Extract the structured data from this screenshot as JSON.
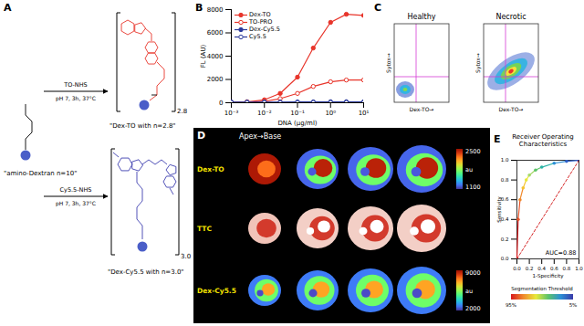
{
  "panel_labels": [
    "A",
    "B",
    "C",
    "D",
    "E"
  ],
  "scheme": {
    "start": "\"amino-Dextran n=10\"",
    "reactions": [
      {
        "reagent": "TO-NHS",
        "conditions": "pH 7, 3h, 37°C",
        "product": "\"Dex-TO with n=2.8\"",
        "subscript": "2.8",
        "color": "#e8352b"
      },
      {
        "reagent": "Cy5.5-NHS",
        "conditions": "pH 7, 3h, 37°C",
        "product": "\"Dex-Cy5.5 with n=3.0\"",
        "subscript": "3.0",
        "color": "#3e3fb0"
      }
    ]
  },
  "flow_cytometry": {
    "plots": [
      "Healthy",
      "Necrotic"
    ],
    "xlabel": "Dex-TO→",
    "ylabel": "Sytox→"
  },
  "imaging": {
    "header": "Apex→Base",
    "rows": [
      {
        "label": "Dex-TO",
        "colorbar": {
          "label": "au",
          "range": [
            1100,
            2500
          ],
          "ticks": [
            1100,
            2500
          ]
        }
      },
      {
        "label": "TTC"
      },
      {
        "label": "Dex-Cy5.5",
        "colorbar": {
          "label": "au",
          "range": [
            2000,
            9000
          ],
          "ticks": [
            2000,
            9000
          ]
        }
      }
    ]
  },
  "chart_data": [
    {
      "type": "line",
      "xlabel": "DNA (µg/ml)",
      "ylabel": "FL (AU)",
      "log": "x",
      "legend": "top-left",
      "x": [
        0.001,
        0.003,
        0.01,
        0.03,
        0.1,
        0.3,
        1,
        3,
        10
      ],
      "series": [
        {
          "name": "Dex-TO",
          "color": "#e8352b",
          "marker": "circle",
          "values": [
            30,
            80,
            250,
            800,
            2200,
            4700,
            6900,
            7600,
            7500
          ]
        },
        {
          "name": "TO-PRO",
          "color": "#e8352b",
          "marker": "circle-open",
          "values": [
            20,
            40,
            120,
            350,
            800,
            1400,
            1800,
            1950,
            1950
          ]
        },
        {
          "name": "Dex-Cy5.5",
          "color": "#2b3a9c",
          "marker": "circle",
          "values": [
            60,
            60,
            60,
            60,
            70,
            70,
            80,
            80,
            80
          ]
        },
        {
          "name": "Cy5.5",
          "color": "#2b3a9c",
          "marker": "circle-open",
          "values": [
            20,
            20,
            20,
            20,
            20,
            25,
            25,
            25,
            25
          ]
        }
      ],
      "xlim": [
        0.001,
        10
      ],
      "xticks": [
        {
          "value": 0.001,
          "label": "10⁻³"
        },
        {
          "value": 0.01,
          "label": "10⁻²"
        },
        {
          "value": 0.1,
          "label": "10⁻¹"
        },
        {
          "value": 1,
          "label": "10⁰"
        },
        {
          "value": 10,
          "label": "10¹"
        }
      ],
      "ylim": [
        0,
        8000
      ],
      "yticks": [
        0,
        2000,
        4000,
        6000,
        8000
      ]
    },
    {
      "type": "line",
      "title": "Receiver Operating Characteristics",
      "xlabel": "1-Specificity",
      "ylabel": "Sensitivity",
      "series": [
        {
          "x": [
            0,
            0.02,
            0.05,
            0.1,
            0.15,
            0.2,
            0.3,
            0.4,
            0.6,
            0.8,
            1
          ],
          "values": [
            0,
            0.4,
            0.6,
            0.72,
            0.8,
            0.85,
            0.9,
            0.93,
            0.97,
            0.99,
            1
          ],
          "colors": [
            "#d7191c",
            "#e8552b",
            "#f08a2c",
            "#f5c230",
            "#e8e83a",
            "#a6d96a",
            "#5cc36a",
            "#2bb3a6",
            "#2b8fd6",
            "#3060c8",
            "#3a3aa8"
          ],
          "marker": "circle"
        },
        {
          "x": [
            0,
            1
          ],
          "values": [
            0,
            1
          ],
          "color": "#d62728",
          "line_style": "dashed"
        }
      ],
      "xlim": [
        0,
        1
      ],
      "xticks": [
        {
          "value": 0,
          "label": "0.0"
        },
        0.2,
        0.4,
        0.6,
        0.8,
        {
          "value": 1,
          "label": "1.0"
        }
      ],
      "ylim": [
        0,
        1
      ],
      "yticks": [
        {
          "value": 0,
          "label": "0.0"
        },
        0.2,
        0.4,
        0.6,
        0.8,
        {
          "value": 1,
          "label": "1.0"
        }
      ],
      "annotations": [
        {
          "text": "AUC=0.88"
        }
      ],
      "colorbar": {
        "title": "Segmentation Threshold",
        "range": [
          95,
          5
        ],
        "ticks": [
          {
            "value": 95,
            "label": "95%"
          },
          {
            "value": 5,
            "label": "5%"
          }
        ],
        "colors": [
          "#d7191c",
          "#f08a2c",
          "#e8e83a",
          "#5cc36a",
          "#2b8fd6",
          "#3a3aa8"
        ]
      }
    }
  ]
}
